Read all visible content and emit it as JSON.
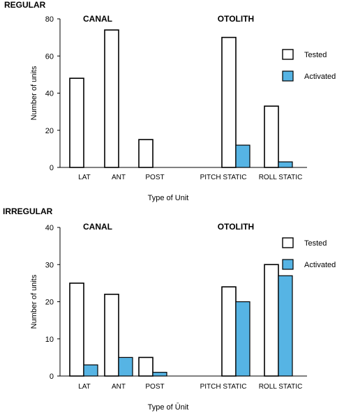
{
  "legend": {
    "tested": {
      "label": "Tested",
      "color": "#ffffff"
    },
    "activated": {
      "label": "Activated",
      "color": "#56b4e4"
    }
  },
  "chart_data": [
    {
      "type": "bar",
      "title": "REGULAR",
      "group_labels": [
        "CANAL",
        "OTOLITH"
      ],
      "categories": [
        "LAT",
        "ANT",
        "POST",
        "PITCH STATIC",
        "ROLL STATIC"
      ],
      "series": [
        {
          "name": "Tested",
          "values": [
            48,
            74,
            15,
            70,
            33
          ]
        },
        {
          "name": "Activated",
          "values": [
            0,
            0,
            0,
            12,
            3
          ]
        }
      ],
      "ylim": [
        0,
        80
      ],
      "yticks": [
        0,
        20,
        40,
        60,
        80
      ],
      "ylabel": "Number of units",
      "xlabel": "Type of Unit",
      "legend_position": "right"
    },
    {
      "type": "bar",
      "title": "IRREGULAR",
      "group_labels": [
        "CANAL",
        "OTOLITH"
      ],
      "categories": [
        "LAT",
        "ANT",
        "POST",
        "PITCH STATIC",
        "ROLL STATIC"
      ],
      "series": [
        {
          "name": "Tested",
          "values": [
            25,
            22,
            5,
            24,
            30
          ]
        },
        {
          "name": "Activated",
          "values": [
            3,
            5,
            1,
            20,
            27
          ]
        }
      ],
      "ylim": [
        0,
        40
      ],
      "yticks": [
        0,
        10,
        20,
        30,
        40
      ],
      "ylabel": "Number of units",
      "xlabel": "Type of Ūnit",
      "legend_position": "right"
    }
  ]
}
